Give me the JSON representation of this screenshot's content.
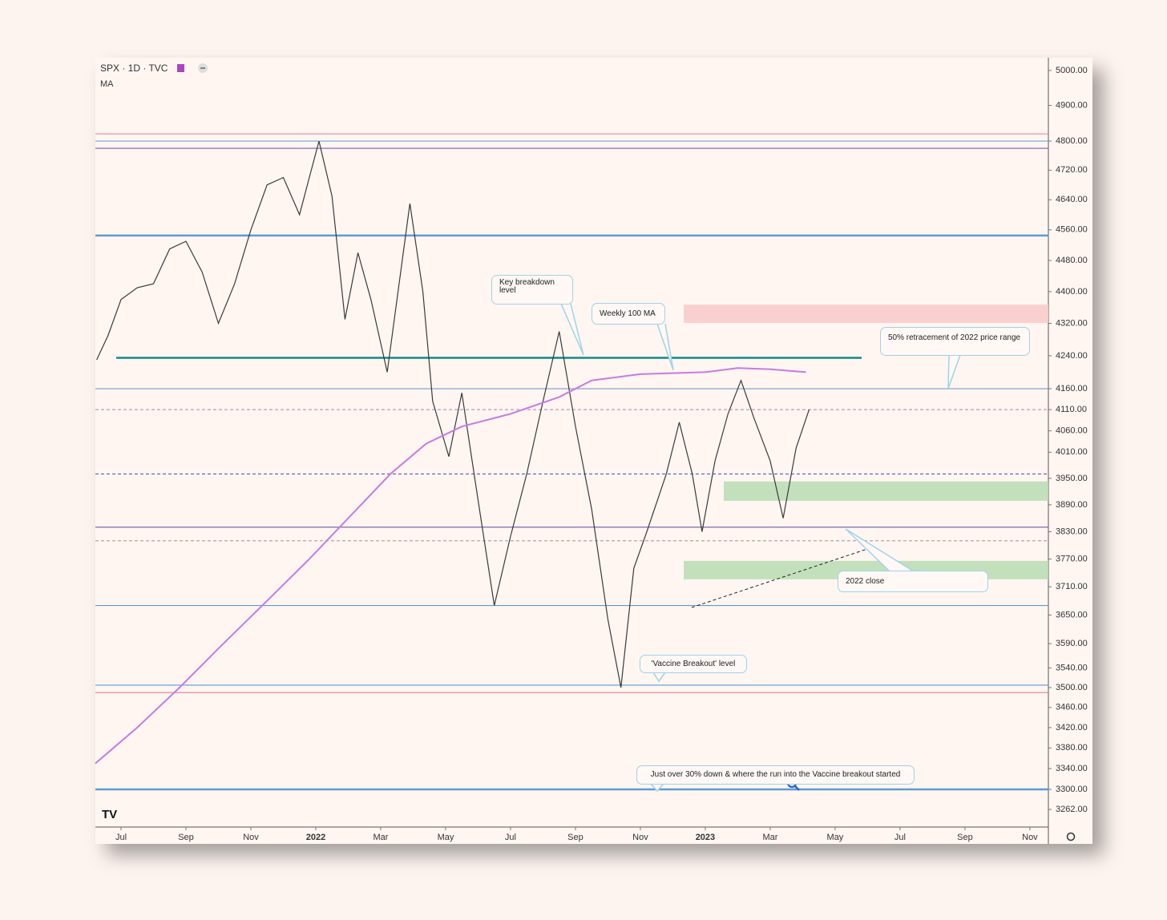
{
  "chart_data": {
    "type": "line",
    "title": "SPX · 1D · TVC",
    "indicator": "MA",
    "log_scale": true,
    "ylim": [
      3229,
      5037
    ],
    "yticks": [
      {
        "value": 5000,
        "label": "5000.00"
      },
      {
        "value": 4900,
        "label": "4900.00"
      },
      {
        "value": 4800,
        "label": "4800.00"
      },
      {
        "value": 4720,
        "label": "4720.00"
      },
      {
        "value": 4640,
        "label": "4640.00"
      },
      {
        "value": 4560,
        "label": "4560.00"
      },
      {
        "value": 4480,
        "label": "4480.00"
      },
      {
        "value": 4400,
        "label": "4400.00"
      },
      {
        "value": 4320,
        "label": "4320.00"
      },
      {
        "value": 4240,
        "label": "4240.00"
      },
      {
        "value": 4160,
        "label": "4160.00"
      },
      {
        "value": 4110,
        "label": "4110.00"
      },
      {
        "value": 4060,
        "label": "4060.00"
      },
      {
        "value": 4010,
        "label": "4010.00"
      },
      {
        "value": 3950,
        "label": "3950.00"
      },
      {
        "value": 3890,
        "label": "3890.00"
      },
      {
        "value": 3830,
        "label": "3830.00"
      },
      {
        "value": 3770,
        "label": "3770.00"
      },
      {
        "value": 3710,
        "label": "3710.00"
      },
      {
        "value": 3650,
        "label": "3650.00"
      },
      {
        "value": 3590,
        "label": "3590.00"
      },
      {
        "value": 3540,
        "label": "3540.00"
      },
      {
        "value": 3500,
        "label": "3500.00"
      },
      {
        "value": 3460,
        "label": "3460.00"
      },
      {
        "value": 3420,
        "label": "3420.00"
      },
      {
        "value": 3380,
        "label": "3380.00"
      },
      {
        "value": 3340,
        "label": "3340.00"
      },
      {
        "value": 3300,
        "label": "3300.00"
      },
      {
        "value": 3262,
        "label": "3262.00"
      }
    ],
    "xlim": [
      -0.79,
      28.57
    ],
    "xticks": [
      {
        "value": 0,
        "label": "Jul"
      },
      {
        "value": 2,
        "label": "Sep"
      },
      {
        "value": 4,
        "label": "Nov"
      },
      {
        "value": 6,
        "label": "2022"
      },
      {
        "value": 8,
        "label": "Mar"
      },
      {
        "value": 10,
        "label": "May"
      },
      {
        "value": 12,
        "label": "Jul"
      },
      {
        "value": 14,
        "label": "Sep"
      },
      {
        "value": 16,
        "label": "Nov"
      },
      {
        "value": 18,
        "label": "2023"
      },
      {
        "value": 20,
        "label": "Mar"
      },
      {
        "value": 22,
        "label": "May"
      },
      {
        "value": 24,
        "label": "Jul"
      },
      {
        "value": 26,
        "label": "Sep"
      },
      {
        "value": 28,
        "label": "Nov"
      }
    ],
    "series": [
      {
        "name": "SPX",
        "color": "#3a3a3a",
        "x": [
          -0.75,
          -0.4,
          0,
          0.5,
          1,
          1.5,
          2,
          2.5,
          3,
          3.5,
          4,
          4.5,
          5,
          5.5,
          5.8,
          6.1,
          6.5,
          6.9,
          7.3,
          7.7,
          8.2,
          8.9,
          9.3,
          9.6,
          10.1,
          10.5,
          11,
          11.5,
          12,
          12.5,
          13,
          13.5,
          14,
          14.5,
          15,
          15.4,
          15.8,
          16.2,
          16.8,
          17.2,
          17.6,
          17.9,
          18.3,
          18.7,
          19.1,
          19.5,
          20,
          20.4,
          20.8,
          21.2
        ],
        "values": [
          4230,
          4290,
          4380,
          4410,
          4420,
          4510,
          4530,
          4450,
          4320,
          4420,
          4560,
          4680,
          4700,
          4600,
          4700,
          4800,
          4650,
          4330,
          4500,
          4380,
          4200,
          4630,
          4400,
          4130,
          4000,
          4150,
          3900,
          3670,
          3820,
          3960,
          4130,
          4300,
          4070,
          3880,
          3640,
          3500,
          3750,
          3830,
          3960,
          4080,
          3960,
          3830,
          3990,
          4100,
          4180,
          4090,
          3990,
          3860,
          4020,
          4110
        ]
      },
      {
        "name": "Weekly 100 MA",
        "color": "#c77be0",
        "x": [
          -0.79,
          0.5,
          1.8,
          3,
          4.5,
          5.8,
          7,
          8.3,
          9.4,
          10.5,
          12,
          13.5,
          14.5,
          16,
          18,
          19,
          20,
          21.1
        ],
        "values": [
          3350,
          3420,
          3500,
          3580,
          3680,
          3770,
          3860,
          3960,
          4030,
          4070,
          4100,
          4140,
          4180,
          4195,
          4200,
          4210,
          4207,
          4200
        ]
      }
    ],
    "levels": [
      {
        "value": 4820,
        "color": "#e88aa6",
        "style": "solid"
      },
      {
        "value": 4800,
        "color": "#6aa5d8",
        "style": "solid"
      },
      {
        "value": 4780,
        "color": "#7a5fb0",
        "style": "solid"
      },
      {
        "value": 4545,
        "color": "#5b9bd5",
        "style": "thick"
      },
      {
        "value": 4235,
        "color": "#138a8a",
        "style": "thick"
      },
      {
        "value": 4160,
        "color": "#7b9bd0",
        "style": "solid"
      },
      {
        "value": 4110,
        "color": "#b07cc0",
        "style": "dashed"
      },
      {
        "value": 3960,
        "color": "#5a5ab8",
        "style": "dashed"
      },
      {
        "value": 3840,
        "color": "#6a5aa8",
        "style": "solid"
      },
      {
        "value": 3810,
        "color": "#a89aa8",
        "style": "dashed"
      },
      {
        "value": 3670,
        "color": "#5b9bd5",
        "style": "solid"
      },
      {
        "value": 3505,
        "color": "#5b9bd5",
        "style": "solid"
      },
      {
        "value": 3490,
        "color": "#e87a9a",
        "style": "solid"
      },
      {
        "value": 3300,
        "color": "#5b9bd5",
        "style": "thick"
      }
    ],
    "zones": [
      {
        "low": 4321,
        "high": 4367,
        "color": "#f9c9c9"
      },
      {
        "low": 3899,
        "high": 3943,
        "color": "#b9dcb4"
      },
      {
        "low": 3726,
        "high": 3766,
        "color": "#b9dcb4"
      }
    ],
    "annotations": [
      "Key breakdown level",
      "Weekly 100 MA",
      "50% retracement of 2022 price range",
      "2022 close",
      "'Vaccine Breakout' level",
      "Just over 30% down & where the run into the Vaccine breakout started"
    ]
  }
}
